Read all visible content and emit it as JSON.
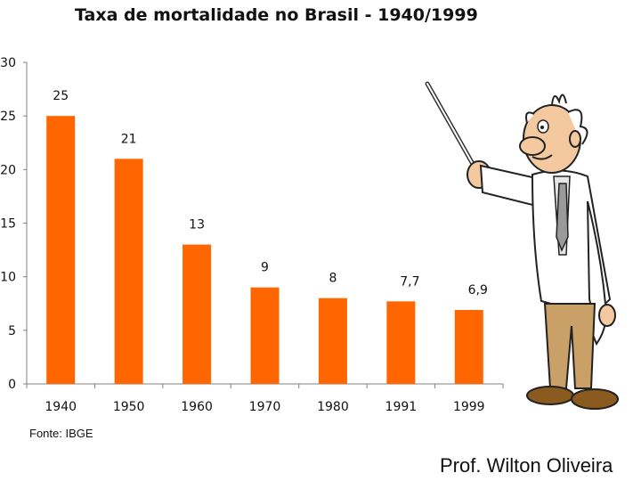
{
  "chart_data": {
    "type": "bar",
    "title": "Taxa de mortalidade no Brasil - 1940/1999",
    "categories": [
      "1940",
      "1950",
      "1960",
      "1970",
      "1980",
      "1991",
      "1999"
    ],
    "values": [
      25,
      21,
      13,
      9,
      8,
      7.7,
      6.9
    ],
    "data_labels": [
      "25",
      "21",
      "13",
      "9",
      "8",
      "7,7",
      "6,9"
    ],
    "ylim": [
      0,
      30
    ],
    "yticks": [
      0,
      5,
      10,
      15,
      20,
      25,
      30
    ],
    "grid": false,
    "legend": "none",
    "bar_color": "#ff6600",
    "xlabel": "",
    "ylabel": ""
  },
  "source_note": "Fonte: IBGE",
  "author": "Prof. Wilton Oliveira",
  "illustration": "professor-with-pointer",
  "colors": {
    "bar": "#ff6600",
    "axis": "#808080",
    "text": "#111111"
  }
}
